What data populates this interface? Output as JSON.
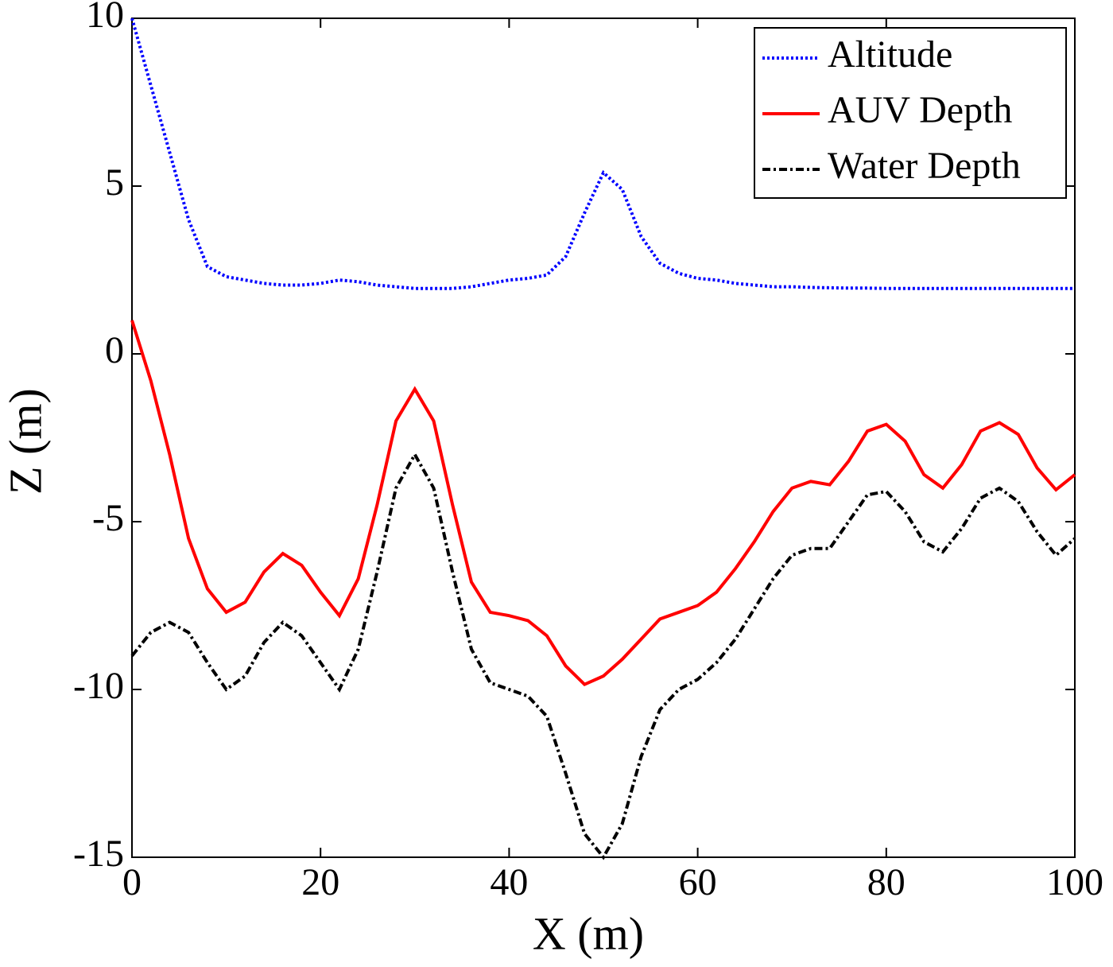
{
  "chart_data": {
    "type": "line",
    "xlabel": "X (m)",
    "ylabel": "Z (m)",
    "x": [
      0,
      2,
      4,
      6,
      8,
      10,
      12,
      14,
      16,
      18,
      20,
      22,
      24,
      26,
      28,
      30,
      32,
      34,
      36,
      38,
      40,
      42,
      44,
      46,
      48,
      50,
      52,
      54,
      56,
      58,
      60,
      62,
      64,
      66,
      68,
      70,
      72,
      74,
      76,
      78,
      80,
      82,
      84,
      86,
      88,
      90,
      92,
      94,
      96,
      98,
      100
    ],
    "series": [
      {
        "name": "Altitude",
        "color": "#0000ff",
        "style": "dotted",
        "values": [
          10,
          8,
          6,
          4,
          2.6,
          2.3,
          2.2,
          2.1,
          2.05,
          2.05,
          2.1,
          2.2,
          2.15,
          2.05,
          2.0,
          1.95,
          1.95,
          1.95,
          2.0,
          2.1,
          2.2,
          2.25,
          2.35,
          2.9,
          4.2,
          5.4,
          4.9,
          3.5,
          2.7,
          2.4,
          2.25,
          2.2,
          2.1,
          2.05,
          2.0,
          2.0,
          1.98,
          1.97,
          1.96,
          1.96,
          1.95,
          1.95,
          1.95,
          1.95,
          1.95,
          1.95,
          1.95,
          1.95,
          1.95,
          1.95,
          1.95
        ]
      },
      {
        "name": "AUV Depth",
        "color": "#ff0000",
        "style": "solid",
        "values": [
          1,
          -0.8,
          -3,
          -5.5,
          -7,
          -7.7,
          -7.4,
          -6.5,
          -5.95,
          -6.3,
          -7.1,
          -7.8,
          -6.7,
          -4.5,
          -2,
          -1.05,
          -2,
          -4.5,
          -6.8,
          -7.7,
          -7.8,
          -7.95,
          -8.4,
          -9.3,
          -9.85,
          -9.6,
          -9.1,
          -8.5,
          -7.9,
          -7.7,
          -7.5,
          -7.1,
          -6.4,
          -5.6,
          -4.7,
          -4,
          -3.8,
          -3.9,
          -3.2,
          -2.3,
          -2.1,
          -2.6,
          -3.6,
          -4,
          -3.3,
          -2.3,
          -2.05,
          -2.4,
          -3.4,
          -4.05,
          -3.6
        ]
      },
      {
        "name": "Water Depth",
        "color": "#000000",
        "style": "dashdot",
        "values": [
          -9,
          -8.3,
          -8,
          -8.3,
          -9.2,
          -10,
          -9.6,
          -8.6,
          -8,
          -8.4,
          -9.2,
          -10,
          -8.8,
          -6.5,
          -4,
          -3,
          -4,
          -6.5,
          -8.8,
          -9.8,
          -10,
          -10.2,
          -10.8,
          -12.5,
          -14.3,
          -15,
          -14,
          -12,
          -10.6,
          -10,
          -9.7,
          -9.2,
          -8.5,
          -7.6,
          -6.7,
          -6,
          -5.8,
          -5.8,
          -5,
          -4.2,
          -4.1,
          -4.7,
          -5.6,
          -5.9,
          -5.2,
          -4.3,
          -4,
          -4.4,
          -5.3,
          -6,
          -5.5
        ]
      }
    ],
    "xlim": [
      0,
      100
    ],
    "xticks": [
      0,
      20,
      40,
      60,
      80,
      100
    ],
    "ylim": [
      -15,
      10
    ],
    "yticks": [
      -15,
      -10,
      -5,
      0,
      5,
      10
    ],
    "grid": false,
    "legend": "upper right"
  }
}
